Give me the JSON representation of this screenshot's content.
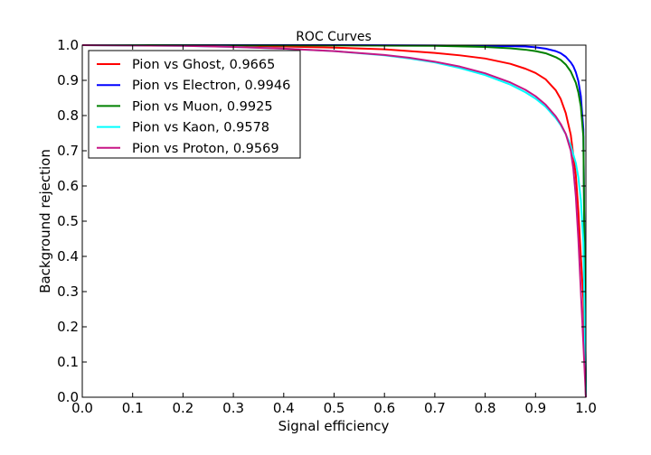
{
  "chart_data": {
    "type": "line",
    "title": "ROC Curves",
    "xlabel": "Signal efficiency",
    "ylabel": "Background rejection",
    "xlim": [
      0.0,
      1.0
    ],
    "ylim": [
      0.0,
      1.0
    ],
    "xticks": [
      "0.0",
      "0.1",
      "0.2",
      "0.3",
      "0.4",
      "0.5",
      "0.6",
      "0.7",
      "0.8",
      "0.9",
      "1.0"
    ],
    "yticks": [
      "0.0",
      "0.1",
      "0.2",
      "0.3",
      "0.4",
      "0.5",
      "0.6",
      "0.7",
      "0.8",
      "0.9",
      "1.0"
    ],
    "grid": false,
    "legend_position": "top-left",
    "series": [
      {
        "name": "Pion vs Ghost, 0.9665",
        "color": "#ff0000",
        "x": [
          0.0,
          0.2,
          0.3,
          0.4,
          0.5,
          0.6,
          0.7,
          0.75,
          0.8,
          0.85,
          0.88,
          0.9,
          0.92,
          0.94,
          0.95,
          0.96,
          0.97,
          0.98,
          0.985,
          0.99,
          0.995,
          1.0
        ],
        "y": [
          1.0,
          0.999,
          0.998,
          0.996,
          0.993,
          0.988,
          0.978,
          0.971,
          0.962,
          0.947,
          0.933,
          0.921,
          0.903,
          0.872,
          0.847,
          0.807,
          0.745,
          0.63,
          0.53,
          0.4,
          0.28,
          0.0
        ]
      },
      {
        "name": "Pion vs Electron, 0.9946",
        "color": "#0000ff",
        "x": [
          0.0,
          0.5,
          0.7,
          0.8,
          0.85,
          0.88,
          0.9,
          0.92,
          0.94,
          0.95,
          0.96,
          0.97,
          0.975,
          0.98,
          0.985,
          0.99,
          0.995,
          1.0
        ],
        "y": [
          1.0,
          1.0,
          0.999,
          0.998,
          0.997,
          0.996,
          0.994,
          0.99,
          0.983,
          0.977,
          0.967,
          0.951,
          0.94,
          0.923,
          0.898,
          0.855,
          0.76,
          0.0
        ]
      },
      {
        "name": "Pion vs Muon, 0.9925",
        "color": "#008000",
        "x": [
          0.0,
          0.5,
          0.7,
          0.8,
          0.85,
          0.88,
          0.9,
          0.92,
          0.94,
          0.95,
          0.96,
          0.97,
          0.98,
          0.985,
          0.99,
          0.995,
          1.0
        ],
        "y": [
          1.0,
          0.999,
          0.998,
          0.995,
          0.991,
          0.987,
          0.983,
          0.977,
          0.966,
          0.958,
          0.945,
          0.925,
          0.893,
          0.866,
          0.825,
          0.74,
          0.0
        ]
      },
      {
        "name": "Pion vs Kaon, 0.9578",
        "color": "#00ffff",
        "x": [
          0.0,
          0.1,
          0.2,
          0.3,
          0.4,
          0.5,
          0.6,
          0.65,
          0.7,
          0.75,
          0.8,
          0.85,
          0.88,
          0.9,
          0.92,
          0.94,
          0.95,
          0.96,
          0.97,
          0.98,
          0.985,
          0.99,
          0.995,
          1.0
        ],
        "y": [
          1.0,
          0.999,
          0.998,
          0.995,
          0.99,
          0.983,
          0.971,
          0.962,
          0.951,
          0.935,
          0.915,
          0.888,
          0.866,
          0.848,
          0.825,
          0.793,
          0.773,
          0.747,
          0.714,
          0.665,
          0.625,
          0.56,
          0.44,
          0.0
        ]
      },
      {
        "name": "Pion vs Proton, 0.9569",
        "color": "#c71585",
        "x": [
          0.0,
          0.1,
          0.2,
          0.3,
          0.4,
          0.5,
          0.6,
          0.65,
          0.7,
          0.75,
          0.8,
          0.85,
          0.88,
          0.9,
          0.92,
          0.94,
          0.95,
          0.96,
          0.97,
          0.975,
          0.98,
          0.985,
          0.99,
          0.995,
          1.0
        ],
        "y": [
          1.0,
          0.999,
          0.998,
          0.995,
          0.99,
          0.983,
          0.972,
          0.964,
          0.953,
          0.939,
          0.92,
          0.894,
          0.873,
          0.855,
          0.831,
          0.798,
          0.776,
          0.748,
          0.7,
          0.65,
          0.57,
          0.45,
          0.3,
          0.15,
          0.0
        ]
      }
    ]
  }
}
